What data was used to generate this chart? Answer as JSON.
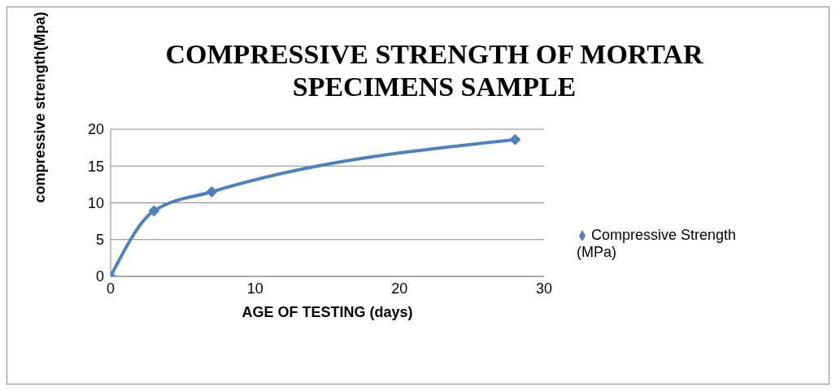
{
  "chart_data": {
    "type": "line",
    "title": "COMPRESSIVE STRENGTH OF MORTAR SPECIMENS  SAMPLE",
    "xlabel": "AGE OF TESTING (days)",
    "ylabel": "compressive strength(Mpa)",
    "x": [
      0,
      3,
      7,
      28
    ],
    "series": [
      {
        "name": "Compressive Strength (MPa)",
        "color": "#4f81bd",
        "values": [
          0,
          8.9,
          11.5,
          18.6
        ]
      }
    ],
    "xlim": [
      0,
      30
    ],
    "xticks": [
      0,
      10,
      20,
      30
    ],
    "ylim": [
      0,
      20
    ],
    "yticks": [
      0,
      5,
      10,
      15,
      20
    ],
    "grid": "y",
    "legend": "right",
    "marker": "diamond",
    "line_style": "solid"
  }
}
